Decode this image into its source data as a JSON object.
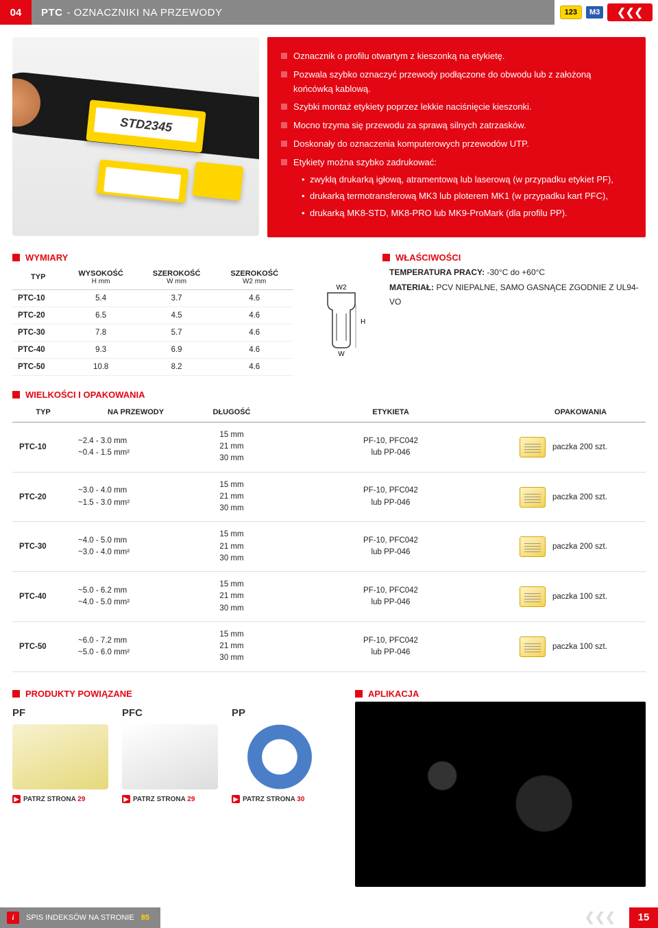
{
  "header": {
    "page_num": "04",
    "code": "PTC",
    "title_rest": " - OZNACZNIKI NA PRZEWODY",
    "badge_123": "123",
    "badge_m3": "M3",
    "logo": "❮❮❮"
  },
  "hero": {
    "marker_label": "STD2345",
    "bullets": [
      "Oznacznik o profilu otwartym z kieszonką na etykietę.",
      "Pozwala szybko oznaczyć przewody podłączone do obwodu lub z założoną końcówką kablową.",
      "Szybki montaż etykiety poprzez lekkie naciśnięcie kieszonki.",
      "Mocno trzyma się przewodu za sprawą silnych zatrzasków.",
      "Doskonały do oznaczenia komputerowych przewodów UTP.",
      "Etykiety można szybko zadrukować:"
    ],
    "sub_bullets": [
      "zwykłą drukarką igłową, atramentową lub laserową (w przypadku etykiet PF),",
      "drukarką termotransferową MK3 lub ploterem MK1 (w przypadku kart PFC),",
      "drukarką MK8-STD, MK8-PRO lub MK9-ProMark (dla profilu PP)."
    ]
  },
  "sections": {
    "wymiary": "WYMIARY",
    "wlasciwosci": "WŁAŚCIWOŚCI",
    "wielkosci": "WIELKOŚCI I OPAKOWANIA",
    "produkty": "PRODUKTY POWIĄZANE",
    "aplikacja": "APLIKACJA"
  },
  "dims": {
    "th_typ": "TYP",
    "th_h": "WYSOKOŚĆ",
    "th_h_u": "H mm",
    "th_w": "SZEROKOŚĆ",
    "th_w_u": "W mm",
    "th_w2": "SZEROKOŚĆ",
    "th_w2_u": "W2 mm",
    "rows": [
      {
        "t": "PTC-10",
        "h": "5.4",
        "w": "3.7",
        "w2": "4.6"
      },
      {
        "t": "PTC-20",
        "h": "6.5",
        "w": "4.5",
        "w2": "4.6"
      },
      {
        "t": "PTC-30",
        "h": "7.8",
        "w": "5.7",
        "w2": "4.6"
      },
      {
        "t": "PTC-40",
        "h": "9.3",
        "w": "6.9",
        "w2": "4.6"
      },
      {
        "t": "PTC-50",
        "h": "10.8",
        "w": "8.2",
        "w2": "4.6"
      }
    ],
    "label_w2": "W2",
    "label_h": "H",
    "label_w": "W"
  },
  "props": {
    "temp_lbl": "TEMPERATURA PRACY:",
    "temp_val": " -30°C do +60°C",
    "mat_lbl": "MATERIAŁ:",
    "mat_val": " PCV NIEPALNE, SAMO GASNĄCE ZGODNIE Z UL94-VO"
  },
  "pack": {
    "th_typ": "TYP",
    "th_prz": "NA PRZEWODY",
    "th_dl": "DŁUGOŚĆ",
    "th_et": "ETYKIETA",
    "th_op": "OPAKOWANIA",
    "rows": [
      {
        "t": "PTC-10",
        "p1": "~2.4  -  3.0 mm",
        "p2": "~0.4  -  1.5 mm²",
        "dl": "15 mm\n21 mm\n30 mm",
        "et": "PF-10, PFC042\nlub PP-046",
        "op": "paczka 200 szt."
      },
      {
        "t": "PTC-20",
        "p1": "~3.0  -  4.0 mm",
        "p2": "~1.5  -  3.0 mm²",
        "dl": "15 mm\n21 mm\n30 mm",
        "et": "PF-10, PFC042\nlub PP-046",
        "op": "paczka 200 szt."
      },
      {
        "t": "PTC-30",
        "p1": "~4.0  -  5.0 mm",
        "p2": "~3.0  -  4.0 mm²",
        "dl": "15 mm\n21 mm\n30 mm",
        "et": "PF-10, PFC042\nlub PP-046",
        "op": "paczka 200 szt."
      },
      {
        "t": "PTC-40",
        "p1": "~5.0  -  6.2 mm",
        "p2": "~4.0  -  5.0 mm²",
        "dl": "15 mm\n21 mm\n30 mm",
        "et": "PF-10, PFC042\nlub PP-046",
        "op": "paczka 100 szt."
      },
      {
        "t": "PTC-50",
        "p1": "~6.0  -  7.2 mm",
        "p2": "~5.0  -  6.0 mm²",
        "dl": "15 mm\n21 mm\n30 mm",
        "et": "PF-10, PFC042\nlub PP-046",
        "op": "paczka 100 szt."
      }
    ]
  },
  "related": {
    "items": [
      {
        "name": "PF",
        "link": "PATRZ STRONA",
        "pg": "29",
        "cls": "pf"
      },
      {
        "name": "PFC",
        "link": "PATRZ STRONA",
        "pg": "29",
        "cls": "pfc"
      },
      {
        "name": "PP",
        "link": "PATRZ STRONA",
        "pg": "30",
        "cls": "pp"
      }
    ]
  },
  "footer": {
    "idx": "SPIS INDEKSÓW NA STRONIE",
    "idx_pg": "85",
    "logo": "❮❮❮",
    "page": "15"
  },
  "colors": {
    "red": "#e30613",
    "grey": "#888",
    "yellow": "#ffd500",
    "blue": "#2a5cae"
  }
}
